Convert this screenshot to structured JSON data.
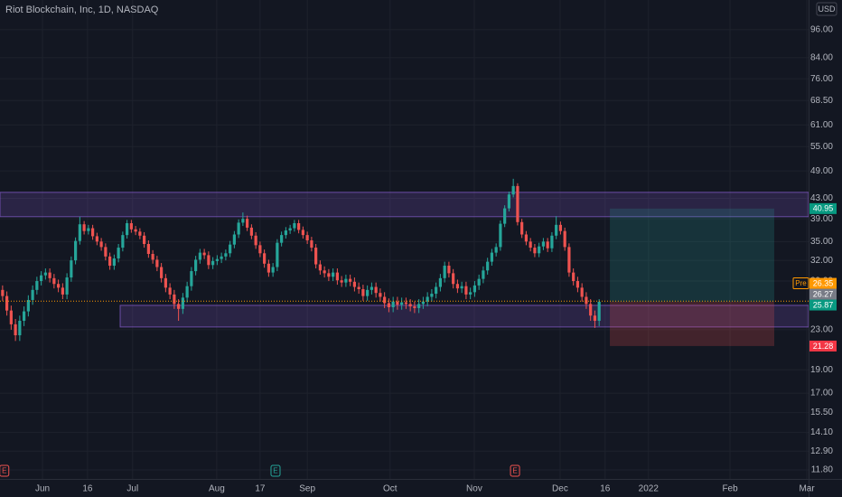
{
  "chart_data": {
    "type": "candlestick",
    "title": "Riot Blockchain, Inc, 1D, NASDAQ",
    "currency": "USD",
    "log_scale": true,
    "grid": true,
    "up_color": "#26a69a",
    "down_color": "#ef5350",
    "xlim": [
      -0.6,
      187.8
    ],
    "ylim": [
      11.3,
      110.6
    ],
    "xticks": [
      {
        "value": 9.3,
        "label": "Jun"
      },
      {
        "value": 19.8,
        "label": "16"
      },
      {
        "value": 30.3,
        "label": "Jul"
      },
      {
        "value": 49.9,
        "label": "Aug"
      },
      {
        "value": 60,
        "label": "17"
      },
      {
        "value": 71,
        "label": "Sep"
      },
      {
        "value": 90.3,
        "label": "Oct"
      },
      {
        "value": 109.9,
        "label": "Nov"
      },
      {
        "value": 129.9,
        "label": "Dec"
      },
      {
        "value": 140.4,
        "label": "16"
      },
      {
        "value": 150.5,
        "label": "2022"
      },
      {
        "value": 169.5,
        "label": "Feb"
      },
      {
        "value": 187.4,
        "label": "Mar"
      }
    ],
    "yticks": [
      {
        "value": 11.8,
        "label": "11.80"
      },
      {
        "value": 12.9,
        "label": "12.90"
      },
      {
        "value": 14.1,
        "label": "14.10"
      },
      {
        "value": 15.5,
        "label": "15.50"
      },
      {
        "value": 17,
        "label": "17.00"
      },
      {
        "value": 19,
        "label": "19.00"
      },
      {
        "value": 23,
        "label": "23.00"
      },
      {
        "value": 29,
        "label": "29.00"
      },
      {
        "value": 32,
        "label": "32.00"
      },
      {
        "value": 35,
        "label": "35.00"
      },
      {
        "value": 39,
        "label": "39.00"
      },
      {
        "value": 43,
        "label": "43.00"
      },
      {
        "value": 49,
        "label": "49.00"
      },
      {
        "value": 55,
        "label": "55.00"
      },
      {
        "value": 61,
        "label": "61.00"
      },
      {
        "value": 68.5,
        "label": "68.50"
      },
      {
        "value": 76,
        "label": "76.00"
      },
      {
        "value": 84,
        "label": "84.00"
      },
      {
        "value": 96,
        "label": "96.00"
      }
    ],
    "ohlc": [
      [
        27.8,
        28.4,
        26.4,
        27.0
      ],
      [
        27.0,
        27.6,
        24.6,
        25.2
      ],
      [
        25.2,
        25.8,
        23.0,
        23.6
      ],
      [
        23.6,
        24.2,
        21.8,
        22.4
      ],
      [
        22.4,
        24.6,
        21.8,
        24.0
      ],
      [
        24.0,
        25.7,
        23.4,
        25.1
      ],
      [
        25.1,
        27.1,
        24.5,
        26.5
      ],
      [
        26.5,
        28.4,
        25.9,
        27.8
      ],
      [
        27.8,
        29.6,
        27.2,
        29.0
      ],
      [
        29.0,
        30.4,
        28.4,
        29.8
      ],
      [
        29.8,
        30.8,
        29.2,
        30.2
      ],
      [
        30.2,
        30.8,
        28.8,
        29.4
      ],
      [
        29.4,
        30.0,
        28.0,
        28.6
      ],
      [
        28.6,
        29.2,
        27.5,
        28.1
      ],
      [
        28.1,
        28.7,
        26.6,
        27.2
      ],
      [
        27.2,
        30.1,
        26.6,
        29.5
      ],
      [
        29.5,
        32.6,
        28.9,
        32.0
      ],
      [
        32.0,
        35.7,
        31.4,
        35.1
      ],
      [
        35.1,
        39.4,
        34.5,
        38.0
      ],
      [
        38.0,
        38.6,
        36.2,
        36.8
      ],
      [
        36.8,
        37.9,
        36.2,
        37.3
      ],
      [
        37.3,
        37.9,
        35.3,
        35.9
      ],
      [
        35.9,
        36.5,
        34.4,
        35.0
      ],
      [
        35.0,
        35.6,
        33.5,
        34.1
      ],
      [
        34.1,
        34.7,
        32.0,
        32.6
      ],
      [
        32.6,
        33.2,
        30.6,
        31.2
      ],
      [
        31.2,
        32.9,
        30.6,
        32.3
      ],
      [
        32.3,
        34.6,
        31.7,
        34.0
      ],
      [
        34.0,
        36.7,
        33.4,
        36.1
      ],
      [
        36.1,
        38.8,
        35.5,
        38.2
      ],
      [
        38.2,
        38.8,
        36.5,
        37.1
      ],
      [
        37.1,
        37.7,
        36.1,
        36.7
      ],
      [
        36.7,
        37.3,
        35.4,
        36.0
      ],
      [
        36.0,
        36.6,
        34.0,
        34.6
      ],
      [
        34.6,
        35.2,
        32.4,
        33.0
      ],
      [
        33.0,
        33.6,
        31.5,
        32.1
      ],
      [
        32.1,
        32.7,
        30.4,
        31.0
      ],
      [
        31.0,
        31.6,
        28.8,
        29.4
      ],
      [
        29.4,
        30.0,
        27.5,
        28.1
      ],
      [
        28.1,
        28.7,
        26.6,
        27.2
      ],
      [
        27.2,
        27.8,
        25.4,
        26.0
      ],
      [
        26.0,
        26.6,
        24.0,
        25.4
      ],
      [
        25.4,
        27.4,
        24.8,
        26.8
      ],
      [
        26.8,
        28.9,
        26.2,
        28.3
      ],
      [
        28.3,
        31.0,
        27.7,
        30.4
      ],
      [
        30.4,
        32.7,
        29.8,
        32.1
      ],
      [
        32.1,
        33.8,
        31.5,
        33.2
      ],
      [
        33.2,
        33.8,
        32.2,
        32.8
      ],
      [
        32.8,
        33.4,
        30.7,
        31.3
      ],
      [
        31.3,
        32.5,
        30.7,
        31.9
      ],
      [
        31.9,
        32.8,
        31.3,
        32.2
      ],
      [
        32.2,
        33.2,
        31.6,
        32.6
      ],
      [
        32.6,
        33.7,
        32.0,
        33.1
      ],
      [
        33.1,
        35.1,
        32.5,
        34.5
      ],
      [
        34.5,
        36.8,
        33.9,
        36.2
      ],
      [
        36.2,
        38.9,
        35.6,
        38.3
      ],
      [
        38.3,
        40.2,
        37.7,
        39.0
      ],
      [
        39.0,
        39.6,
        36.8,
        37.4
      ],
      [
        37.4,
        38.0,
        35.4,
        36.0
      ],
      [
        36.0,
        36.6,
        33.8,
        34.4
      ],
      [
        34.4,
        35.0,
        32.5,
        33.1
      ],
      [
        33.1,
        33.7,
        30.9,
        31.5
      ],
      [
        31.5,
        32.1,
        29.6,
        30.2
      ],
      [
        30.2,
        31.6,
        29.6,
        31.0
      ],
      [
        31.0,
        35.4,
        30.4,
        34.8
      ],
      [
        34.8,
        36.7,
        34.2,
        36.1
      ],
      [
        36.1,
        37.5,
        35.5,
        36.9
      ],
      [
        36.9,
        37.9,
        36.3,
        37.3
      ],
      [
        37.3,
        38.8,
        36.7,
        38.2
      ],
      [
        38.2,
        38.8,
        36.4,
        37.0
      ],
      [
        37.0,
        37.6,
        35.5,
        36.1
      ],
      [
        36.1,
        36.7,
        34.6,
        35.2
      ],
      [
        35.2,
        35.8,
        33.4,
        34.0
      ],
      [
        34.0,
        34.6,
        30.8,
        31.4
      ],
      [
        31.4,
        32.0,
        29.9,
        30.5
      ],
      [
        30.5,
        31.1,
        29.5,
        30.1
      ],
      [
        30.1,
        30.7,
        29.0,
        29.6
      ],
      [
        29.6,
        30.8,
        29.0,
        30.2
      ],
      [
        30.2,
        30.8,
        28.5,
        29.1
      ],
      [
        29.1,
        29.7,
        28.2,
        28.8
      ],
      [
        28.8,
        29.9,
        28.2,
        29.3
      ],
      [
        29.3,
        29.9,
        28.3,
        28.9
      ],
      [
        28.9,
        29.5,
        27.6,
        28.2
      ],
      [
        28.2,
        28.8,
        27.3,
        27.9
      ],
      [
        27.9,
        28.5,
        26.4,
        27.0
      ],
      [
        27.0,
        28.4,
        26.4,
        27.8
      ],
      [
        27.8,
        28.8,
        27.2,
        28.2
      ],
      [
        28.2,
        28.8,
        26.8,
        27.4
      ],
      [
        27.4,
        28.0,
        26.3,
        26.9
      ],
      [
        26.9,
        27.5,
        25.5,
        26.1
      ],
      [
        26.1,
        26.7,
        25.0,
        25.6
      ],
      [
        25.6,
        26.9,
        25.0,
        26.3
      ],
      [
        26.3,
        26.9,
        25.3,
        25.9
      ],
      [
        25.9,
        26.8,
        25.3,
        26.2
      ],
      [
        26.2,
        26.8,
        25.4,
        26.0
      ],
      [
        26.0,
        26.6,
        25.1,
        25.7
      ],
      [
        25.7,
        26.3,
        24.9,
        25.5
      ],
      [
        25.5,
        26.6,
        24.9,
        26.0
      ],
      [
        26.0,
        26.9,
        25.4,
        26.3
      ],
      [
        26.3,
        27.5,
        25.7,
        26.9
      ],
      [
        26.9,
        27.9,
        26.3,
        27.3
      ],
      [
        27.3,
        28.8,
        26.7,
        28.2
      ],
      [
        28.2,
        30.0,
        27.6,
        29.4
      ],
      [
        29.4,
        31.8,
        28.8,
        31.2
      ],
      [
        31.2,
        31.8,
        29.5,
        30.1
      ],
      [
        30.1,
        30.7,
        28.0,
        28.6
      ],
      [
        28.6,
        29.2,
        27.4,
        28.0
      ],
      [
        28.0,
        28.9,
        27.4,
        28.3
      ],
      [
        28.3,
        28.9,
        26.6,
        27.2
      ],
      [
        27.2,
        28.1,
        26.6,
        27.5
      ],
      [
        27.5,
        29.0,
        26.9,
        28.4
      ],
      [
        28.4,
        29.9,
        27.8,
        29.3
      ],
      [
        29.3,
        31.1,
        28.7,
        30.5
      ],
      [
        30.5,
        32.4,
        29.9,
        31.8
      ],
      [
        31.8,
        33.8,
        31.2,
        33.2
      ],
      [
        33.2,
        34.7,
        32.6,
        34.1
      ],
      [
        34.1,
        38.7,
        33.5,
        38.1
      ],
      [
        38.1,
        41.6,
        37.5,
        41.0
      ],
      [
        41.0,
        44.4,
        40.4,
        43.8
      ],
      [
        43.8,
        47.2,
        43.2,
        45.6
      ],
      [
        45.6,
        46.2,
        37.8,
        38.4
      ],
      [
        38.4,
        39.0,
        35.6,
        36.2
      ],
      [
        36.2,
        36.8,
        34.4,
        35.0
      ],
      [
        35.0,
        35.6,
        33.4,
        34.0
      ],
      [
        34.0,
        34.6,
        32.5,
        33.1
      ],
      [
        33.1,
        34.8,
        32.5,
        34.2
      ],
      [
        34.2,
        35.6,
        33.6,
        35.0
      ],
      [
        35.0,
        35.6,
        33.3,
        33.9
      ],
      [
        33.9,
        36.6,
        33.3,
        36.0
      ],
      [
        36.0,
        39.5,
        35.4,
        37.9
      ],
      [
        37.9,
        38.5,
        36.2,
        36.8
      ],
      [
        36.8,
        37.4,
        33.5,
        34.1
      ],
      [
        34.1,
        34.7,
        29.6,
        30.2
      ],
      [
        30.2,
        30.8,
        28.4,
        29.0
      ],
      [
        29.0,
        29.6,
        27.5,
        28.1
      ],
      [
        28.1,
        28.7,
        26.3,
        26.9
      ],
      [
        26.9,
        27.5,
        25.4,
        26.0
      ],
      [
        26.0,
        26.6,
        24.0,
        24.6
      ],
      [
        24.6,
        25.2,
        23.2,
        24.0
      ],
      [
        24.0,
        26.6,
        23.4,
        26.27
      ]
    ],
    "zones": [
      {
        "start": -0.6,
        "end": 187.8,
        "low": 39.4,
        "high": 44.25,
        "color": "#7e57c2"
      },
      {
        "start": 27.4,
        "end": 187.8,
        "low": 23.3,
        "high": 25.83,
        "color": "#7e57c2"
      }
    ],
    "position": {
      "start": 141.5,
      "end": 179.8,
      "entry": 26.27,
      "target": 40.95,
      "stop": 21.28,
      "target_color": "#26a69a",
      "stop_color": "#ef5350"
    },
    "price_labels": [
      {
        "value": 40.95,
        "color": "#089981"
      },
      {
        "value": 26.35,
        "tag": "Pre",
        "color": "#ff9800"
      },
      {
        "value": 26.27,
        "color": "#787b86"
      },
      {
        "value": 25.87,
        "color": "#089981"
      },
      {
        "value": 21.28,
        "color": "#f23645"
      }
    ],
    "events": [
      {
        "x": 0.4,
        "label": "E",
        "color": "#ef5350"
      },
      {
        "x": 63.6,
        "label": "E",
        "color": "#26a69a"
      },
      {
        "x": 119.4,
        "label": "E",
        "color": "#ef5350"
      }
    ]
  }
}
